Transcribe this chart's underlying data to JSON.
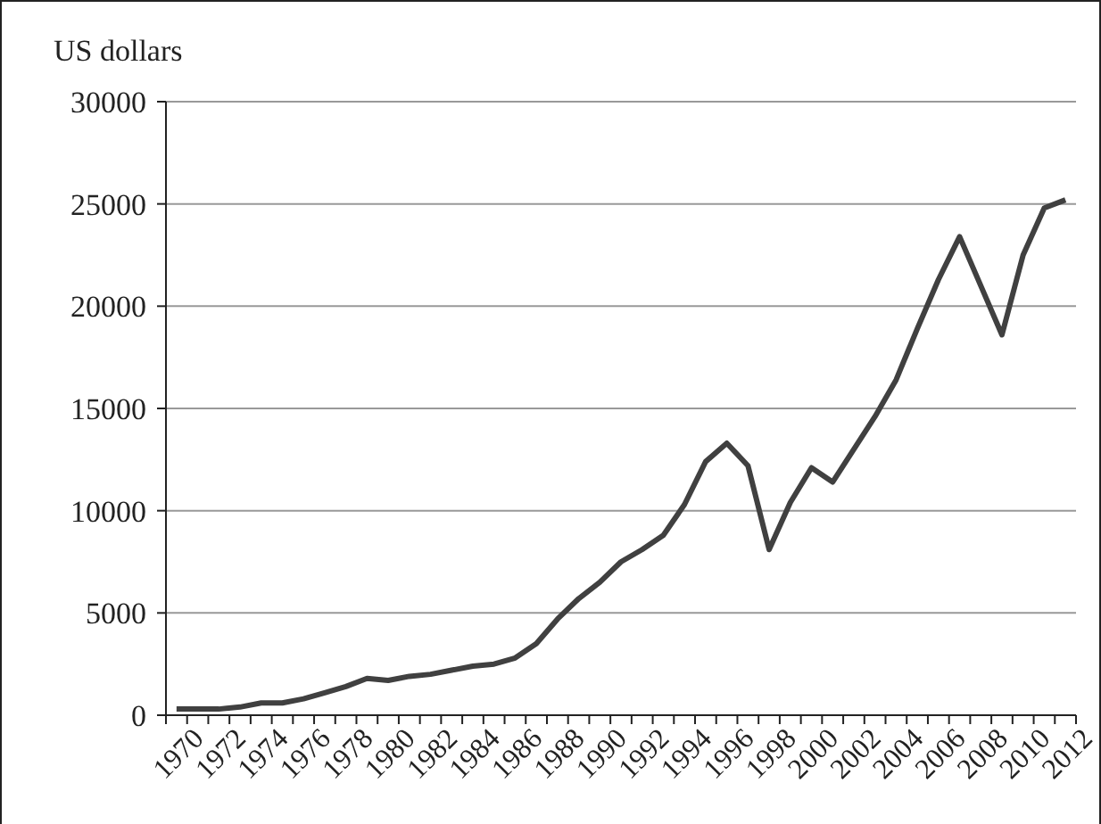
{
  "chart_data": {
    "type": "line",
    "ylabel": "US dollars",
    "categories": [
      "1970",
      null,
      "1972",
      null,
      "1974",
      null,
      "1976",
      null,
      "1978",
      null,
      "1980",
      null,
      "1982",
      null,
      "1984",
      null,
      "1986",
      null,
      "1988",
      null,
      "1990",
      null,
      "1992",
      null,
      "1994",
      null,
      "1996",
      null,
      "1998",
      null,
      "2000",
      null,
      "2002",
      null,
      "2004",
      null,
      "2006",
      null,
      "2008",
      null,
      "2010",
      null,
      "2012"
    ],
    "series": [
      {
        "color": "#404040",
        "values": [
          300,
          300,
          300,
          400,
          600,
          600,
          800,
          1100,
          1400,
          1800,
          1700,
          1900,
          2000,
          2200,
          2400,
          2500,
          2800,
          3500,
          4700,
          5700,
          6500,
          7500,
          8100,
          8800,
          10300,
          12400,
          13300,
          12200,
          8100,
          10400,
          12100,
          11400,
          13000,
          14600,
          16400,
          18900,
          21300,
          23400,
          21000,
          18600,
          22500,
          24800,
          25200
        ]
      }
    ],
    "ylim": [
      0,
      30000
    ],
    "yticks": [
      0,
      5000,
      10000,
      15000,
      20000,
      25000,
      30000
    ],
    "grid": "y",
    "marker": "none",
    "line_style": "solid"
  }
}
